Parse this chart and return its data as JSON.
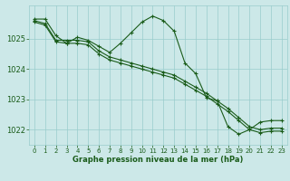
{
  "bg_color": "#cce8e8",
  "grid_color": "#99cccc",
  "line_color": "#1a5c1a",
  "xlabel": "Graphe pression niveau de la mer (hPa)",
  "xlim": [
    -0.5,
    23.5
  ],
  "ylim": [
    1021.5,
    1026.1
  ],
  "yticks": [
    1022,
    1023,
    1024,
    1025
  ],
  "xticks": [
    0,
    1,
    2,
    3,
    4,
    5,
    6,
    7,
    8,
    9,
    10,
    11,
    12,
    13,
    14,
    15,
    16,
    17,
    18,
    19,
    20,
    21,
    22,
    23
  ],
  "series1_x": [
    0,
    1,
    2,
    3,
    4,
    5,
    6,
    7,
    8,
    9,
    10,
    11,
    12,
    13,
    14,
    15,
    16,
    17,
    18,
    19,
    20,
    21,
    22,
    23
  ],
  "series1_y": [
    1025.65,
    1025.65,
    1025.1,
    1024.85,
    1025.05,
    1024.95,
    1024.75,
    1024.55,
    1024.85,
    1025.2,
    1025.55,
    1025.75,
    1025.6,
    1025.25,
    1024.2,
    1023.85,
    1023.05,
    1022.95,
    1022.1,
    1021.85,
    1022.0,
    1022.25,
    1022.3,
    1022.3
  ],
  "series2_x": [
    0,
    1,
    2,
    3,
    4,
    5,
    6,
    7,
    8,
    9,
    10,
    11,
    12,
    13,
    14,
    15,
    16,
    17,
    18,
    19,
    20,
    21,
    22,
    23
  ],
  "series2_y": [
    1025.6,
    1025.5,
    1024.95,
    1024.95,
    1024.95,
    1024.9,
    1024.6,
    1024.4,
    1024.3,
    1024.2,
    1024.1,
    1024.0,
    1023.9,
    1023.8,
    1023.6,
    1023.4,
    1023.2,
    1022.95,
    1022.7,
    1022.4,
    1022.1,
    1022.0,
    1022.05,
    1022.05
  ],
  "series3_x": [
    0,
    1,
    2,
    3,
    4,
    5,
    6,
    7,
    8,
    9,
    10,
    11,
    12,
    13,
    14,
    15,
    16,
    17,
    18,
    19,
    20,
    21,
    22,
    23
  ],
  "series3_y": [
    1025.55,
    1025.45,
    1024.9,
    1024.85,
    1024.85,
    1024.8,
    1024.5,
    1024.3,
    1024.2,
    1024.1,
    1024.0,
    1023.9,
    1023.8,
    1023.7,
    1023.5,
    1023.3,
    1023.1,
    1022.85,
    1022.6,
    1022.3,
    1022.0,
    1021.9,
    1021.95,
    1021.95
  ]
}
